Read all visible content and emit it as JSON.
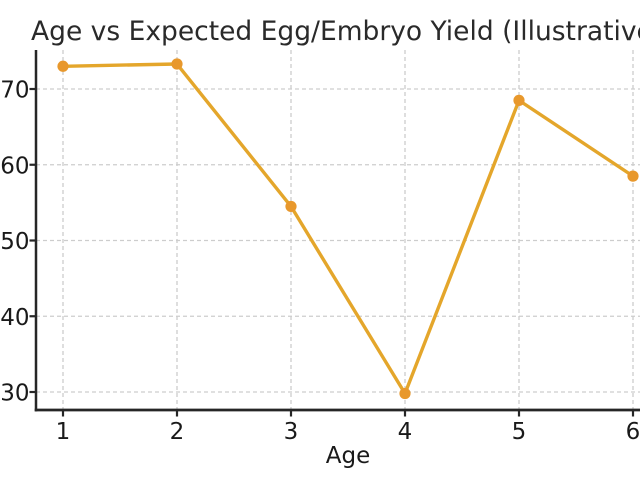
{
  "chart_data": {
    "type": "line",
    "title": "Age vs Expected Egg/Embryo Yield (Illustrative)",
    "xlabel": "Age",
    "ylabel": "",
    "x": [
      1,
      2,
      3,
      4,
      5,
      6
    ],
    "values": [
      73.0,
      73.3,
      54.5,
      29.8,
      68.5,
      58.5
    ],
    "xticks": [
      "1",
      "2",
      "3",
      "4",
      "5",
      "6"
    ],
    "yticks": [
      "30",
      "40",
      "50",
      "60",
      "70"
    ],
    "xlim": [
      0.77,
      6.06
    ],
    "ylim": [
      27.6,
      75.2
    ],
    "grid": true,
    "grid_style": "dashed",
    "legend": false,
    "marker": "circle",
    "colors": {
      "line": "#E4A62B",
      "marker": "#E8982C",
      "spine": "#262626",
      "grid": "#CDCDCD",
      "tick_text": "#1A1A1A",
      "title_text": "#2A2A2A"
    }
  }
}
